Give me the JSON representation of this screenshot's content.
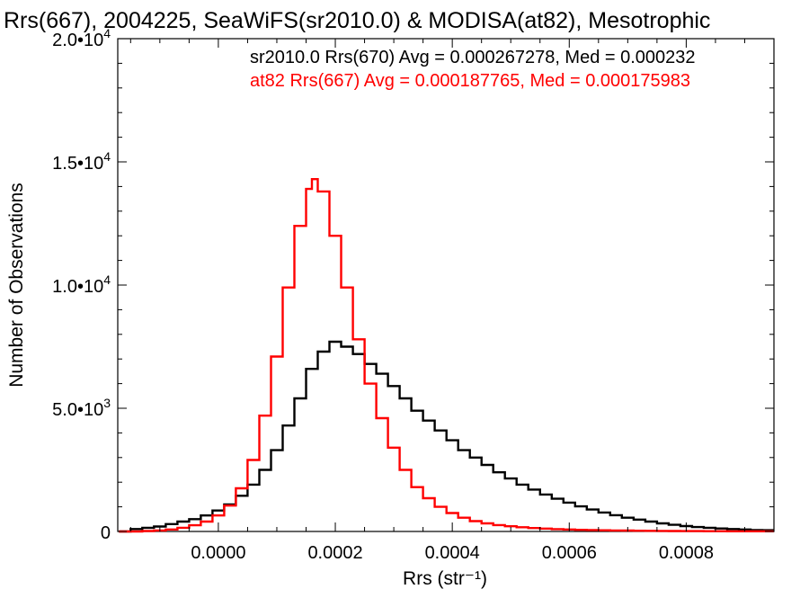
{
  "chart_data": {
    "type": "line",
    "title": "Rrs(667), 2004225, SeaWiFS(sr2010.0) & MODISA(at82), Mesotrophic",
    "xlabel": "Rrs (str⁻¹)",
    "ylabel": "Number of Observations",
    "xlim": [
      -0.000172,
      0.00095
    ],
    "ylim": [
      0,
      20000
    ],
    "x_ticks": [
      {
        "value": 0.0,
        "label": "0.0000"
      },
      {
        "value": 0.0002,
        "label": "0.0002"
      },
      {
        "value": 0.0004,
        "label": "0.0004"
      },
      {
        "value": 0.0006,
        "label": "0.0006"
      },
      {
        "value": 0.0008,
        "label": "0.0008"
      }
    ],
    "y_ticks": [
      {
        "value": 0,
        "base": "0",
        "exp": ""
      },
      {
        "value": 5000,
        "base": "5.0•10",
        "exp": "3"
      },
      {
        "value": 10000,
        "base": "1.0•10",
        "exp": "4"
      },
      {
        "value": 15000,
        "base": "1.5•10",
        "exp": "4"
      },
      {
        "value": 20000,
        "base": "2.0•10",
        "exp": "4"
      }
    ],
    "legend_placement": "top-right",
    "series": [
      {
        "name": "sr2010.0 Rrs(670) Avg = 0.000267278, Med = 0.000232",
        "color": "#000000",
        "x": [
          -0.00017,
          -0.00015,
          -0.00013,
          -0.00011,
          -9e-05,
          -7e-05,
          -5e-05,
          -3e-05,
          -1e-05,
          1e-05,
          3e-05,
          5e-05,
          7e-05,
          9e-05,
          0.00011,
          0.00013,
          0.00015,
          0.00017,
          0.00019,
          0.00021,
          0.00023,
          0.00025,
          0.00027,
          0.00029,
          0.00031,
          0.00033,
          0.00035,
          0.00037,
          0.00039,
          0.00041,
          0.00043,
          0.00045,
          0.00047,
          0.00049,
          0.00051,
          0.00053,
          0.00055,
          0.00057,
          0.00059,
          0.00061,
          0.00063,
          0.00065,
          0.00067,
          0.00069,
          0.00071,
          0.00073,
          0.00075,
          0.00077,
          0.00079,
          0.00081,
          0.00083,
          0.00085,
          0.00087,
          0.00089,
          0.00091,
          0.00093
        ],
        "values": [
          0,
          100,
          150,
          200,
          300,
          400,
          500,
          650,
          850,
          1100,
          1450,
          1900,
          2500,
          3300,
          4300,
          5400,
          6600,
          7300,
          7700,
          7500,
          7200,
          6800,
          6400,
          5900,
          5400,
          4900,
          4500,
          4100,
          3700,
          3300,
          3000,
          2700,
          2400,
          2150,
          1900,
          1700,
          1500,
          1330,
          1170,
          1020,
          890,
          770,
          660,
          560,
          480,
          400,
          330,
          270,
          220,
          180,
          150,
          120,
          100,
          80,
          60,
          50
        ]
      },
      {
        "name": "at82 Rrs(667) Avg = 0.000187765, Med = 0.000175983",
        "color": "#ff0000",
        "x": [
          -0.00017,
          -0.00015,
          -0.00013,
          -0.00011,
          -9e-05,
          -7e-05,
          -5e-05,
          -3e-05,
          -1e-05,
          1e-05,
          3e-05,
          5e-05,
          7e-05,
          9e-05,
          0.00011,
          0.00013,
          0.00015,
          0.00016,
          0.00017,
          0.00019,
          0.00021,
          0.00023,
          0.00025,
          0.00027,
          0.00029,
          0.00031,
          0.00033,
          0.00035,
          0.00037,
          0.00039,
          0.00041,
          0.00043,
          0.00045,
          0.00047,
          0.00049,
          0.00051,
          0.00053,
          0.00055,
          0.00057,
          0.00059,
          0.00061,
          0.00063,
          0.00065,
          0.00067,
          0.00069,
          0.00071,
          0.00073,
          0.00075,
          0.00077,
          0.00079,
          0.00081,
          0.00083,
          0.00085,
          0.00087,
          0.00089,
          0.00091,
          0.00093
        ],
        "values": [
          0,
          0,
          20,
          40,
          80,
          150,
          250,
          400,
          650,
          1050,
          1750,
          2900,
          4700,
          7100,
          9900,
          12400,
          13900,
          14300,
          13800,
          12000,
          9900,
          7800,
          6000,
          4600,
          3400,
          2500,
          1800,
          1350,
          1000,
          750,
          560,
          420,
          330,
          260,
          210,
          170,
          140,
          115,
          95,
          80,
          67,
          57,
          48,
          41,
          35,
          30,
          26,
          22,
          19,
          16,
          14,
          12,
          10,
          9,
          8,
          7,
          6
        ]
      }
    ]
  }
}
